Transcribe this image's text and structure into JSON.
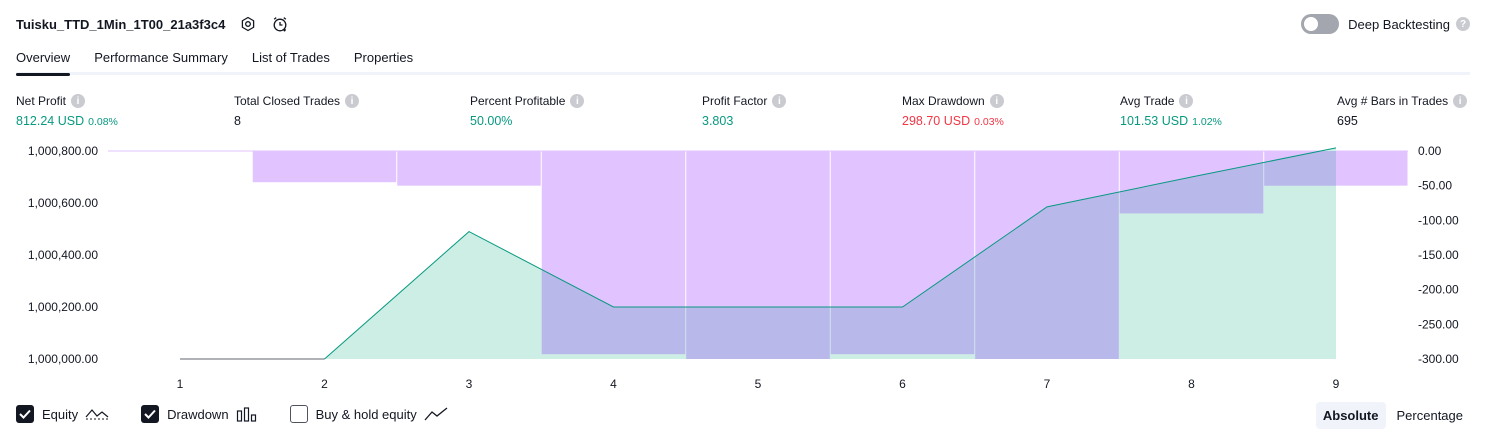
{
  "header": {
    "strategy_title": "Tuisku_TTD_1Min_1T00_21a3f3c4",
    "deep_backtesting_label": "Deep Backtesting"
  },
  "tabs": [
    {
      "label": "Overview",
      "active": true
    },
    {
      "label": "Performance Summary",
      "active": false
    },
    {
      "label": "List of Trades",
      "active": false
    },
    {
      "label": "Properties",
      "active": false
    }
  ],
  "metrics": [
    {
      "label": "Net Profit",
      "value": "812.24 USD",
      "pct": "0.08%",
      "color": "green"
    },
    {
      "label": "Total Closed Trades",
      "value": "8",
      "pct": "",
      "color": "dark"
    },
    {
      "label": "Percent Profitable",
      "value": "50.00%",
      "pct": "",
      "color": "green"
    },
    {
      "label": "Profit Factor",
      "value": "3.803",
      "pct": "",
      "color": "green"
    },
    {
      "label": "Max Drawdown",
      "value": "298.70 USD",
      "pct": "0.03%",
      "color": "red"
    },
    {
      "label": "Avg Trade",
      "value": "101.53 USD",
      "pct": "1.02%",
      "color": "green"
    },
    {
      "label": "Avg # Bars in Trades",
      "value": "695",
      "pct": "",
      "color": "dark"
    }
  ],
  "chart_data": {
    "type": "area",
    "x": [
      1,
      2,
      3,
      4,
      5,
      6,
      7,
      8,
      9
    ],
    "x_tick_labels": [
      "1",
      "2",
      "3",
      "4",
      "5",
      "6",
      "7",
      "8",
      "9"
    ],
    "left_axis": {
      "ticks": [
        "1,000,800.00",
        "1,000,600.00",
        "1,000,400.00",
        "1,000,200.00",
        "1,000,000.00"
      ],
      "range": [
        1000000,
        1000800
      ]
    },
    "right_axis": {
      "ticks": [
        "0.00",
        "-50.00",
        "-100.00",
        "-150.00",
        "-200.00",
        "-250.00",
        "-300.00"
      ],
      "range": [
        -300,
        0
      ]
    },
    "series": [
      {
        "id": "equity",
        "axis": "left",
        "values": [
          1000000,
          1000000,
          1000490,
          1000200,
          1000200,
          1000200,
          1000585,
          1000700,
          1000812
        ],
        "color": "#089981"
      },
      {
        "id": "drawdown",
        "axis": "right",
        "values": [
          0,
          -45,
          -50,
          -293,
          -300,
          -293,
          -300,
          -90,
          -50
        ],
        "color": "#c89cfb"
      }
    ],
    "colors": {
      "equity_line": "#089981",
      "equity_fill": "#cdeee4",
      "drawdown_fill": "#e1c4ff",
      "overlap_fill": "#b8b8ea",
      "flat_line": "#9598a1"
    }
  },
  "legend": [
    {
      "label": "Equity",
      "checked": true,
      "icon": "equity-line-icon"
    },
    {
      "label": "Drawdown",
      "checked": true,
      "icon": "drawdown-bars-icon"
    },
    {
      "label": "Buy & hold equity",
      "checked": false,
      "icon": "buy-hold-line-icon"
    }
  ],
  "mode": {
    "options": [
      "Absolute",
      "Percentage"
    ],
    "selected": "Absolute"
  }
}
